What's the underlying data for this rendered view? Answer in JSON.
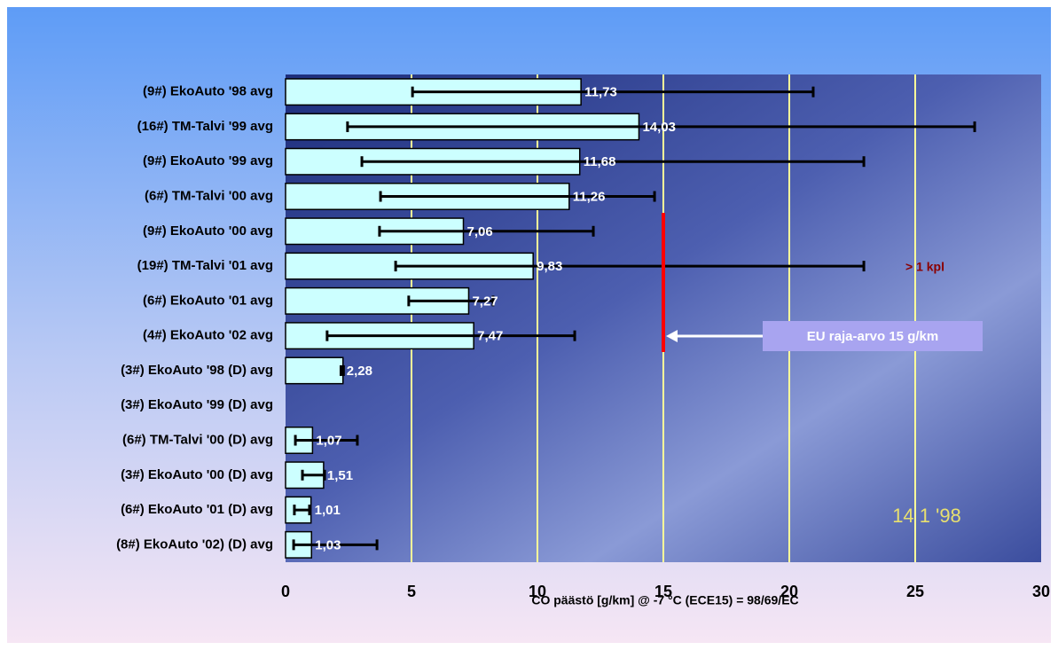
{
  "chart_data": {
    "type": "bar",
    "orientation": "horizontal",
    "x_label": "CO päästö [g/km] @ -7 °C (ECE15) =    98/69/EC",
    "categories": [
      "(9#) EkoAuto '98 avg",
      "(16#) TM-Talvi '99 avg",
      "(9#) EkoAuto '99 avg",
      "(6#) TM-Talvi '00 avg",
      "(9#) EkoAuto '00 avg",
      "(19#) TM-Talvi '01 avg",
      "(6#) EkoAuto '01 avg",
      "(4#) EkoAuto '02 avg",
      "(3#)  EkoAuto '98 (D) avg",
      "(3#)  EkoAuto '99 (D) avg",
      "(6#) TM-Talvi '00 (D) avg",
      "(3#) EkoAuto '00 (D) avg",
      "(6#) EkoAuto '01 (D) avg",
      "(8#) EkoAuto '02) (D) avg"
    ],
    "values": [
      11.73,
      14.03,
      11.68,
      11.26,
      7.06,
      9.83,
      7.27,
      7.47,
      2.28,
      null,
      1.07,
      1.51,
      1.01,
      1.03
    ],
    "value_labels": [
      "11,73",
      "14,03",
      "11,68",
      "11,26",
      "7,06",
      "9,83",
      "7,27",
      "7,47",
      "2,28",
      null,
      "1,07",
      "1,51",
      "1,01",
      "1,03"
    ],
    "error_min": [
      5.04,
      2.46,
      3.03,
      3.77,
      3.73,
      4.37,
      4.89,
      1.65,
      2.2,
      null,
      0.39,
      0.67,
      0.35,
      0.32
    ],
    "error_max": [
      20.95,
      27.36,
      22.96,
      14.65,
      12.22,
      22.96,
      8.24,
      11.48,
      2.3,
      null,
      2.85,
      1.55,
      0.95,
      3.63
    ],
    "color": "#ccffff",
    "xlim": [
      0,
      30
    ],
    "xticks": [
      0,
      5,
      10,
      15,
      20,
      25,
      30
    ],
    "grid": true,
    "limit_line": {
      "value": 15,
      "color": "#ff0000",
      "label": "EU raja-arvo 15 g/km"
    },
    "annotation": "> 1 kpl",
    "photo_stamp": "14   1 '98"
  }
}
